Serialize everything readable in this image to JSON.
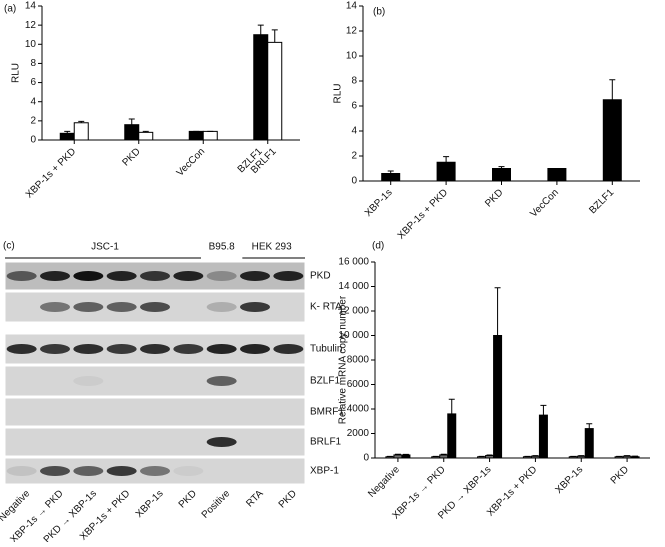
{
  "chart_data": [
    {
      "type": "bar",
      "panel_label": "(a)",
      "ylabel": "RLU",
      "categories": [
        "XBP-1s + PKD",
        "PKD",
        "VecCon",
        "BZLF1"
      ],
      "annotation": "BRLF1",
      "series": [
        {
          "color": "#000000",
          "values": [
            0.7,
            1.6,
            0.9,
            11.0
          ],
          "errors": [
            0.2,
            0.6,
            0,
            1.0
          ]
        },
        {
          "color": "#ffffff",
          "values": [
            1.8,
            0.8,
            0.9,
            10.2
          ],
          "errors": [
            0.15,
            0.1,
            0,
            1.3
          ]
        }
      ],
      "ylim": [
        0,
        14
      ],
      "yticks": [
        0,
        2,
        4,
        6,
        8,
        10,
        12,
        14
      ]
    },
    {
      "type": "bar",
      "panel_label": "(b)",
      "ylabel": "RLU",
      "categories": [
        "XBP-1s",
        "XBP-1s + PKD",
        "PKD",
        "VecCon",
        "BZLF1"
      ],
      "series": [
        {
          "color": "#000000",
          "values": [
            0.6,
            1.5,
            1.0,
            1.0,
            6.5
          ],
          "errors": [
            0.2,
            0.45,
            0.15,
            0,
            1.6
          ]
        }
      ],
      "ylim": [
        0,
        14
      ],
      "yticks": [
        0,
        2,
        4,
        6,
        8,
        10,
        12,
        14
      ]
    },
    {
      "type": "bar",
      "panel_label": "(d)",
      "ylabel": "Relative mRNA copy number",
      "categories": [
        "Negative",
        "XBP-1s → PKD",
        "PKD → XBP-1s",
        "XBP-1s + PKD",
        "XBP-1s",
        "PKD"
      ],
      "series": [
        {
          "color": "#c8c8c8",
          "values": [
            100,
            100,
            100,
            100,
            100,
            100
          ],
          "errors": [
            30,
            30,
            30,
            30,
            30,
            30
          ]
        },
        {
          "color": "#707070",
          "values": [
            250,
            250,
            200,
            150,
            150,
            150
          ],
          "errors": [
            60,
            60,
            50,
            40,
            40,
            40
          ]
        },
        {
          "color": "#000000",
          "values": [
            250,
            3600,
            10000,
            3500,
            2400,
            100
          ],
          "errors": [
            50,
            1200,
            3900,
            800,
            400,
            50
          ]
        }
      ],
      "ylim": [
        0,
        16000
      ],
      "yticks": [
        0,
        2000,
        4000,
        6000,
        8000,
        {
          "value": 10000,
          "label": "10 000"
        },
        {
          "value": 12000,
          "label": "12 000"
        },
        {
          "value": 14000,
          "label": "14 000"
        },
        {
          "value": 16000,
          "label": "16 000"
        }
      ]
    }
  ],
  "blot": {
    "panel_label": "(c)",
    "groups": [
      "JSC-1",
      "B95.8",
      "HEK 293"
    ],
    "rows": [
      "PKD",
      "K- RTA",
      "Tubulin",
      "BZLF1",
      "BMRF1",
      "BRLF1",
      "XBP-1"
    ],
    "lanes": [
      "Negative",
      "XBP-1s → PKD",
      "PKD → XBP-1s",
      "XBP-1s + PKD",
      "XBP-1s",
      "PKD",
      "Positive",
      "RTA",
      "PKD"
    ]
  }
}
